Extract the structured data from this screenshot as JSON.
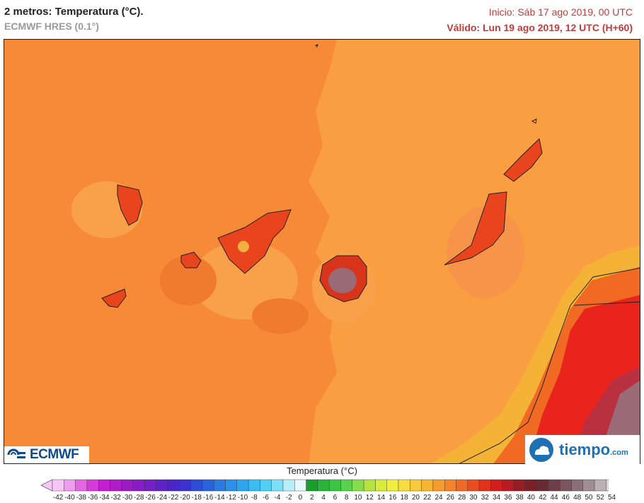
{
  "header": {
    "title": "2 metros: Temperatura (°C).",
    "model": "ECMWF HRES (0.1°)",
    "init": "Inicio: Sáb 17 ago 2019, 00 UTC",
    "valid": "Válido: Lun 19 ago 2019, 12 UTC (H+60)"
  },
  "logos": {
    "left_text": "ECMWF",
    "right_text": "tiempo",
    "right_domain": ".com"
  },
  "legend": {
    "title": "Temperatura (°C)",
    "labels": [
      "-42",
      "-40",
      "-38",
      "-36",
      "-34",
      "-32",
      "-30",
      "-28",
      "-26",
      "-24",
      "-22",
      "-20",
      "-18",
      "-16",
      "-14",
      "-12",
      "-10",
      "-8",
      "-6",
      "-4",
      "-2",
      "0",
      "2",
      "4",
      "6",
      "8",
      "10",
      "12",
      "14",
      "16",
      "18",
      "20",
      "22",
      "24",
      "26",
      "28",
      "30",
      "32",
      "34",
      "36",
      "38",
      "40",
      "42",
      "44",
      "46",
      "48",
      "50",
      "52",
      "54"
    ],
    "colors": [
      "#f7c6f7",
      "#f09cf0",
      "#e466e6",
      "#d63ad8",
      "#c31fd0",
      "#b01cc8",
      "#9b1ac4",
      "#8a1cc8",
      "#7420c8",
      "#5e22c8",
      "#4a26c8",
      "#3a33d0",
      "#2d4cd8",
      "#2a62de",
      "#2a7ae4",
      "#2b90ea",
      "#2ea6ee",
      "#3abcf2",
      "#52d0f4",
      "#7ee0f6",
      "#b6eefa",
      "#e6f8fc",
      "#1a9e2e",
      "#2ab23a",
      "#3ec444",
      "#58d24c",
      "#86dc4a",
      "#b4e440",
      "#d8ec3a",
      "#f2ee3e",
      "#f6de40",
      "#f6ca3a",
      "#f6b432",
      "#f69c2c",
      "#f48428",
      "#f06a24",
      "#ea4e20",
      "#e2321c",
      "#d21e1c",
      "#b81c22",
      "#961e22",
      "#7a2026",
      "#6a2a34",
      "#6e3e4c",
      "#7c5460",
      "#8a6e78",
      "#a08c94",
      "#bcb0b4",
      "#d8d4d4"
    ]
  },
  "map_colors": {
    "sea_light": "#fa9e42",
    "sea_mid": "#f68a36",
    "sea_warm": "#f07a2e",
    "island_hot": "#e8441e",
    "africa_yellow": "#f4b236",
    "africa_red": "#e8241c",
    "peak_grey": "#9a6a76"
  }
}
